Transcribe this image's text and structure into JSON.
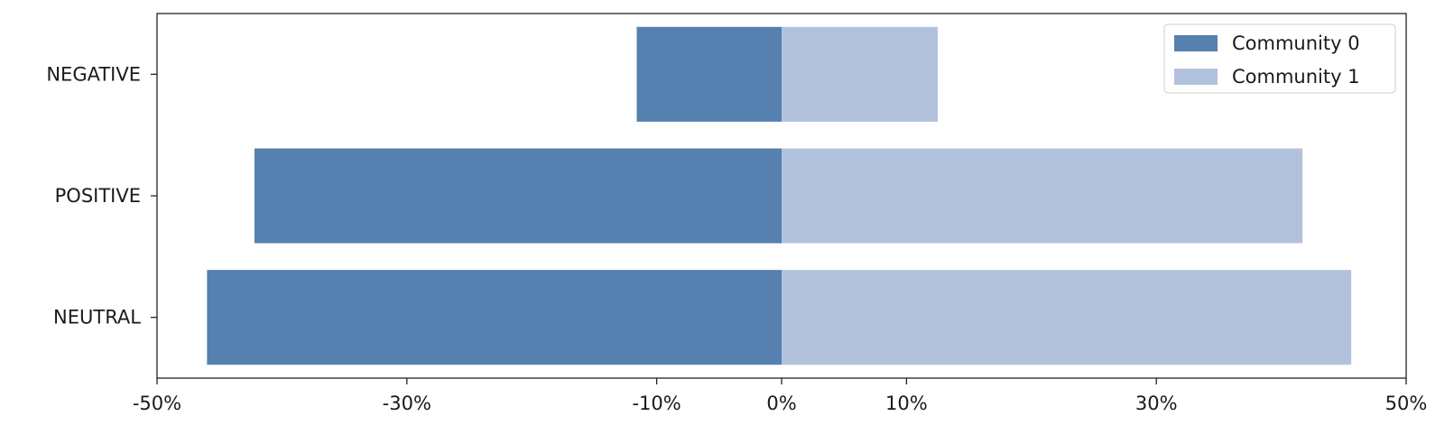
{
  "chart_data": {
    "type": "bar",
    "orientation": "horizontal",
    "layout": "diverging",
    "categories": [
      "NEGATIVE",
      "POSITIVE",
      "NEUTRAL"
    ],
    "series": [
      {
        "name": "Community 0",
        "values": [
          -11.6,
          -42.2,
          -46.0
        ],
        "color": "#5580b0"
      },
      {
        "name": "Community 1",
        "values": [
          12.5,
          41.7,
          45.6
        ],
        "color": "#b3c2dc"
      }
    ],
    "xlim": [
      -50,
      50
    ],
    "xticks": [
      -50,
      -30,
      -10,
      0,
      10,
      30,
      50
    ],
    "xtick_labels": [
      "-50%",
      "-30%",
      "-10%",
      "0%",
      "10%",
      "30%",
      "50%"
    ],
    "title": "",
    "xlabel": "",
    "ylabel": "",
    "grid": false,
    "legend_position": "top-right"
  }
}
